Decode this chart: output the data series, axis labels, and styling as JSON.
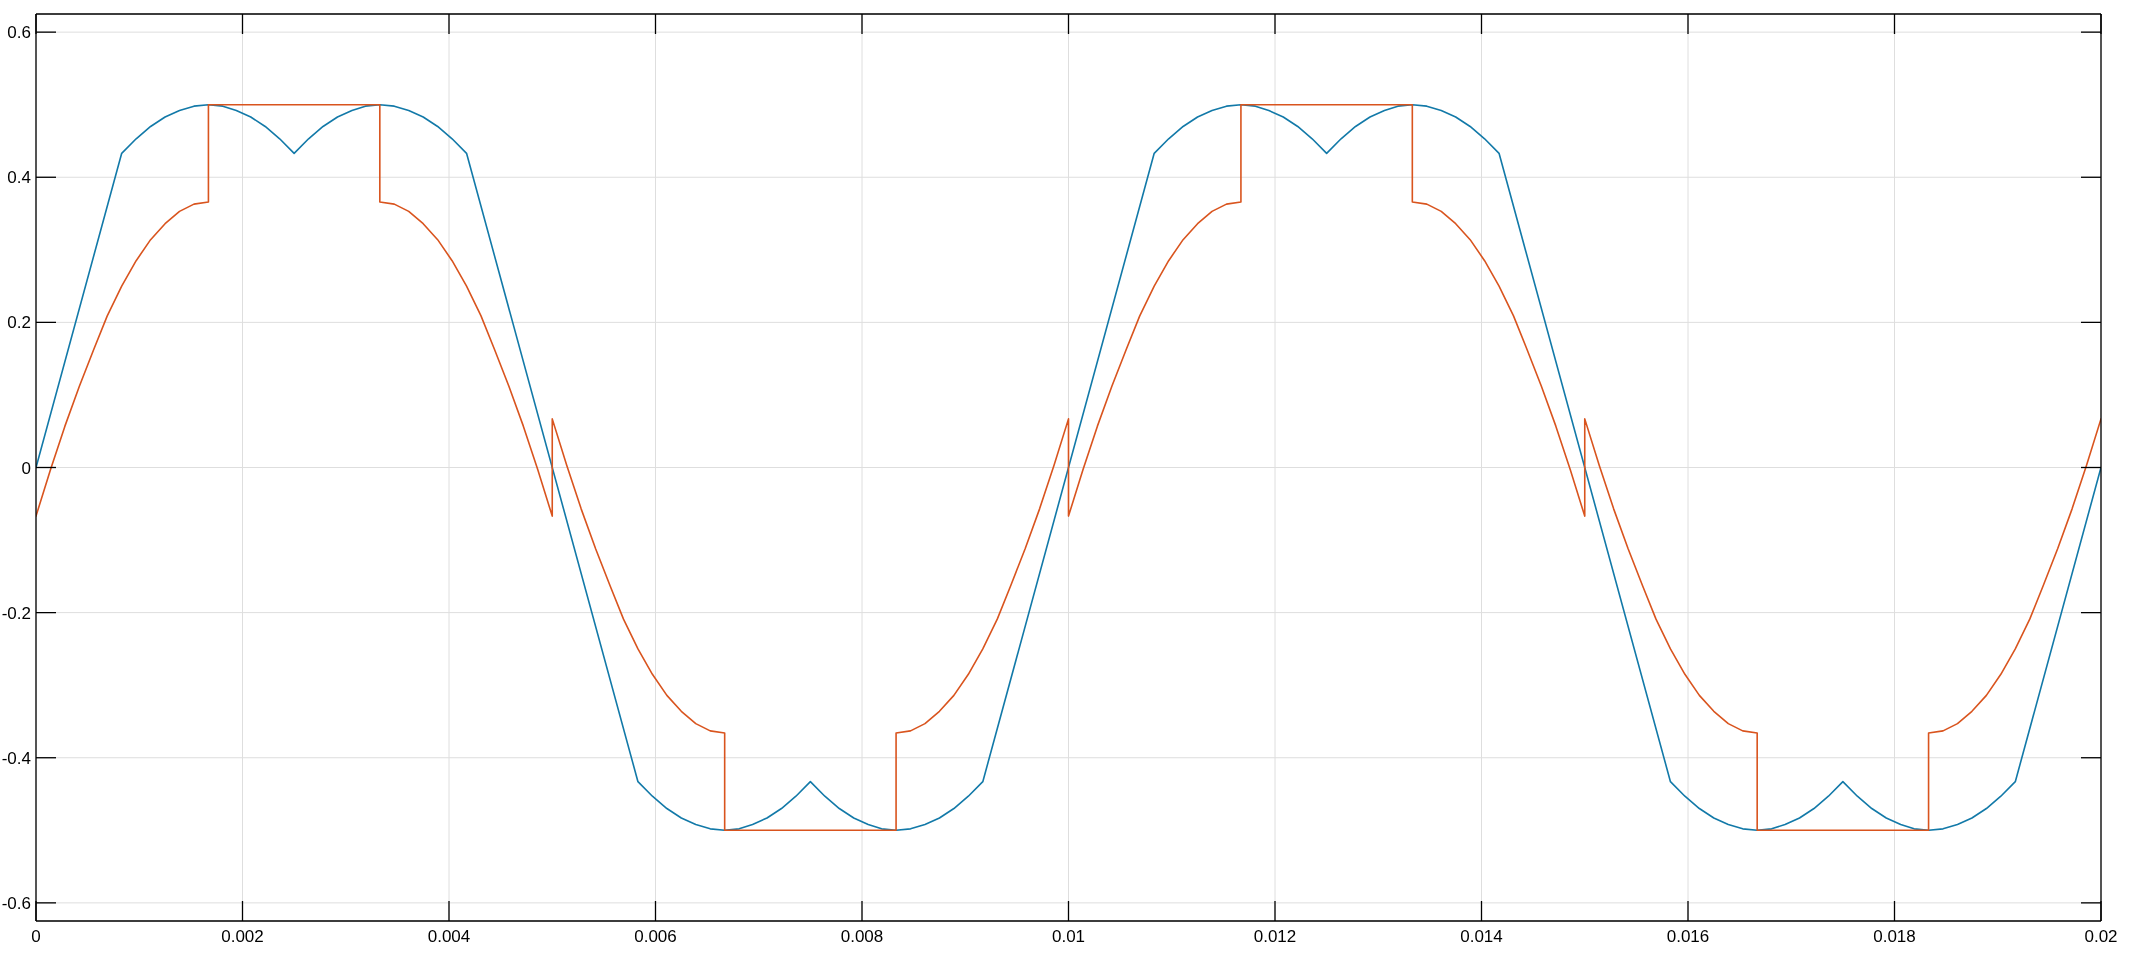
{
  "chart_data": {
    "type": "line",
    "xlim": [
      0,
      0.02
    ],
    "ylim": [
      -0.625,
      0.625
    ],
    "xticks": [
      0,
      0.002,
      0.004,
      0.006,
      0.008,
      0.01,
      0.012,
      0.014,
      0.016,
      0.018,
      0.02
    ],
    "yticks": [
      -0.6,
      -0.4,
      -0.2,
      0,
      0.2,
      0.4,
      0.6
    ],
    "grid": true,
    "series": [
      {
        "color": "#1279a8",
        "x": [
          0,
          0.00083,
          0.00097,
          0.00111,
          0.00125,
          0.00139,
          0.00153,
          0.00167,
          0.00181,
          0.00194,
          0.00208,
          0.00222,
          0.00236,
          0.0025,
          0.00264,
          0.00278,
          0.00292,
          0.00306,
          0.00319,
          0.00333,
          0.00347,
          0.00361,
          0.00375,
          0.00389,
          0.00403,
          0.00417,
          0.00583,
          0.00597,
          0.00611,
          0.00625,
          0.00639,
          0.00653,
          0.00667,
          0.00681,
          0.00694,
          0.00708,
          0.00722,
          0.00736,
          0.0075,
          0.00764,
          0.00778,
          0.00792,
          0.00806,
          0.00819,
          0.00833,
          0.00847,
          0.00861,
          0.00875,
          0.00889,
          0.00903,
          0.00917,
          0.01083,
          0.01097,
          0.01111,
          0.01125,
          0.01139,
          0.01153,
          0.01167,
          0.01181,
          0.01194,
          0.01208,
          0.01222,
          0.01236,
          0.0125,
          0.01264,
          0.01278,
          0.01292,
          0.01306,
          0.01319,
          0.01333,
          0.01347,
          0.01361,
          0.01375,
          0.01389,
          0.01403,
          0.01417,
          0.01583,
          0.01597,
          0.01611,
          0.01625,
          0.01639,
          0.01653,
          0.01667,
          0.01681,
          0.01694,
          0.01708,
          0.01722,
          0.01736,
          0.0175,
          0.01764,
          0.01778,
          0.01792,
          0.01806,
          0.01819,
          0.01833,
          0.01847,
          0.01861,
          0.01875,
          0.01889,
          0.01903,
          0.01917,
          0.02
        ],
        "values": [
          0,
          0.433,
          0.453,
          0.47,
          0.483,
          0.492,
          0.498,
          0.5,
          0.498,
          0.492,
          0.483,
          0.47,
          0.453,
          0.433,
          0.453,
          0.47,
          0.483,
          0.492,
          0.498,
          0.5,
          0.498,
          0.492,
          0.483,
          0.47,
          0.453,
          0.433,
          -0.433,
          -0.453,
          -0.47,
          -0.483,
          -0.492,
          -0.498,
          -0.5,
          -0.498,
          -0.492,
          -0.483,
          -0.47,
          -0.453,
          -0.433,
          -0.453,
          -0.47,
          -0.483,
          -0.492,
          -0.498,
          -0.5,
          -0.498,
          -0.492,
          -0.483,
          -0.47,
          -0.453,
          -0.433,
          0.433,
          0.453,
          0.47,
          0.483,
          0.492,
          0.498,
          0.5,
          0.498,
          0.492,
          0.483,
          0.47,
          0.453,
          0.433,
          0.453,
          0.47,
          0.483,
          0.492,
          0.498,
          0.5,
          0.498,
          0.492,
          0.483,
          0.47,
          0.453,
          0.433,
          -0.433,
          -0.453,
          -0.47,
          -0.483,
          -0.492,
          -0.498,
          -0.5,
          -0.498,
          -0.492,
          -0.483,
          -0.47,
          -0.453,
          -0.433,
          -0.453,
          -0.47,
          -0.483,
          -0.492,
          -0.498,
          -0.5,
          -0.498,
          -0.492,
          -0.483,
          -0.47,
          -0.453,
          -0.433,
          0
        ]
      },
      {
        "color": "#d9541e",
        "x": [
          0,
          0.00014,
          0.00028,
          0.00042,
          0.00056,
          0.00069,
          0.00083,
          0.00097,
          0.00111,
          0.00125,
          0.00139,
          0.00153,
          0.00167,
          0.00167,
          0.00333,
          0.00333,
          0.00347,
          0.00361,
          0.00375,
          0.00389,
          0.00403,
          0.00417,
          0.00431,
          0.00444,
          0.00458,
          0.00472,
          0.00486,
          0.005,
          0.005,
          0.00514,
          0.00528,
          0.00542,
          0.00556,
          0.00569,
          0.00583,
          0.00597,
          0.00611,
          0.00625,
          0.00639,
          0.00653,
          0.00667,
          0.00667,
          0.00833,
          0.00833,
          0.00847,
          0.00861,
          0.00875,
          0.00889,
          0.00903,
          0.00917,
          0.00931,
          0.00944,
          0.00958,
          0.00972,
          0.00986,
          0.01,
          0.01,
          0.01014,
          0.01028,
          0.01042,
          0.01056,
          0.01069,
          0.01083,
          0.01097,
          0.01111,
          0.01125,
          0.01139,
          0.01153,
          0.01167,
          0.01167,
          0.01333,
          0.01333,
          0.01347,
          0.01361,
          0.01375,
          0.01389,
          0.01403,
          0.01417,
          0.01431,
          0.01444,
          0.01458,
          0.01472,
          0.01486,
          0.015,
          0.015,
          0.01514,
          0.01528,
          0.01542,
          0.01556,
          0.01569,
          0.01583,
          0.01597,
          0.01611,
          0.01625,
          0.01639,
          0.01653,
          0.01667,
          0.01667,
          0.01833,
          0.01833,
          0.01847,
          0.01861,
          0.01875,
          0.01889,
          0.01903,
          0.01917,
          0.01931,
          0.01944,
          0.01958,
          0.01972,
          0.01986,
          0.02
        ],
        "values": [
          -0.067,
          -0.003,
          0.057,
          0.112,
          0.163,
          0.209,
          0.25,
          0.285,
          0.314,
          0.336,
          0.353,
          0.363,
          0.366,
          0.5,
          0.5,
          0.366,
          0.363,
          0.353,
          0.336,
          0.314,
          0.285,
          0.25,
          0.209,
          0.163,
          0.112,
          0.057,
          -0.003,
          -0.067,
          0.067,
          0.003,
          -0.057,
          -0.112,
          -0.163,
          -0.209,
          -0.25,
          -0.285,
          -0.314,
          -0.336,
          -0.353,
          -0.363,
          -0.366,
          -0.5,
          -0.5,
          -0.366,
          -0.363,
          -0.353,
          -0.336,
          -0.314,
          -0.285,
          -0.25,
          -0.209,
          -0.163,
          -0.112,
          -0.057,
          0.003,
          0.067,
          -0.067,
          -0.003,
          0.057,
          0.112,
          0.163,
          0.209,
          0.25,
          0.285,
          0.314,
          0.336,
          0.353,
          0.363,
          0.366,
          0.5,
          0.5,
          0.366,
          0.363,
          0.353,
          0.336,
          0.314,
          0.285,
          0.25,
          0.209,
          0.163,
          0.112,
          0.057,
          -0.003,
          -0.067,
          0.067,
          0.003,
          -0.057,
          -0.112,
          -0.163,
          -0.209,
          -0.25,
          -0.285,
          -0.314,
          -0.336,
          -0.353,
          -0.363,
          -0.366,
          -0.5,
          -0.5,
          -0.366,
          -0.363,
          -0.353,
          -0.336,
          -0.314,
          -0.285,
          -0.25,
          -0.209,
          -0.163,
          -0.112,
          -0.057,
          0.003,
          0.067
        ]
      }
    ]
  }
}
